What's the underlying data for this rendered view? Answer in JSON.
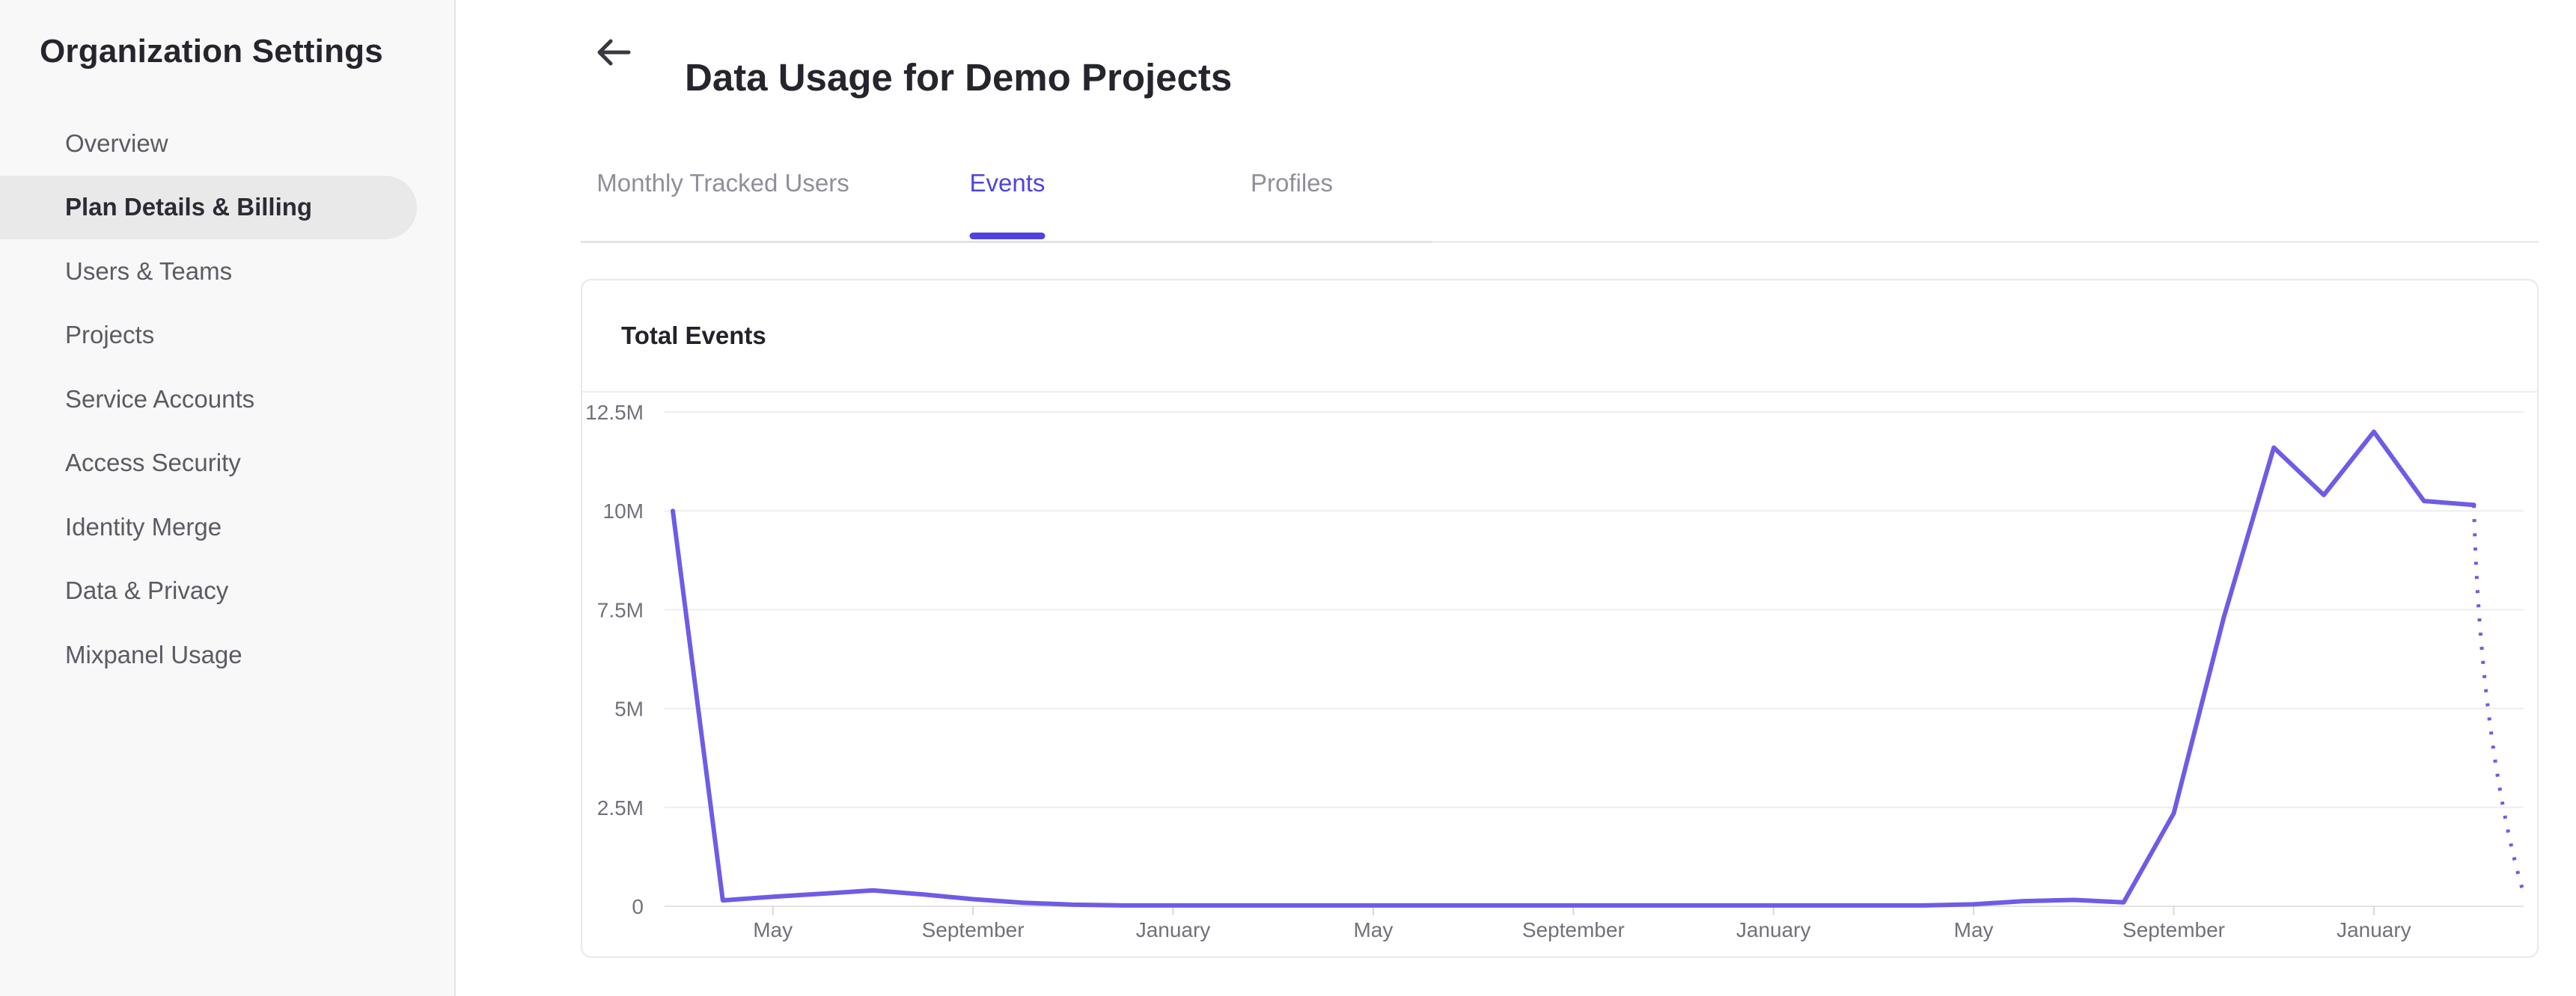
{
  "sidebar": {
    "title": "Organization Settings",
    "items": [
      {
        "label": "Overview",
        "selected": false
      },
      {
        "label": "Plan Details & Billing",
        "selected": true
      },
      {
        "label": "Users & Teams",
        "selected": false
      },
      {
        "label": "Projects",
        "selected": false
      },
      {
        "label": "Service Accounts",
        "selected": false
      },
      {
        "label": "Access Security",
        "selected": false
      },
      {
        "label": "Identity Merge",
        "selected": false
      },
      {
        "label": "Data & Privacy",
        "selected": false
      },
      {
        "label": "Mixpanel Usage",
        "selected": false
      }
    ]
  },
  "header": {
    "title": "Data Usage for Demo Projects",
    "back_icon": "left-arrow"
  },
  "tabs": [
    {
      "label": "Monthly Tracked Users",
      "active": false
    },
    {
      "label": "Events",
      "active": true
    },
    {
      "label": "Profiles",
      "active": false
    }
  ],
  "card": {
    "title": "Total Events"
  },
  "colors": {
    "accent": "#4f43e0",
    "chart_line": "#6e5ce6",
    "sidebar_bg": "#f8f8f8",
    "selected_item_bg": "#e9e9e9",
    "gridline": "#eeeeef",
    "axis_line": "#e3e3e6",
    "axis_text": "#71717c"
  },
  "chart_data": {
    "type": "line",
    "title": "Total Events",
    "x_tick_labels": [
      "May",
      "September",
      "January",
      "May",
      "September",
      "January",
      "May",
      "September",
      "January"
    ],
    "x_tick_month_indices": [
      2,
      6,
      10,
      14,
      18,
      22,
      26,
      30,
      34
    ],
    "y_tick_labels": [
      "12.5M",
      "10M",
      "7.5M",
      "5M",
      "2.5M",
      "0"
    ],
    "y_tick_values_millions": [
      12.5,
      10,
      7.5,
      5,
      2.5,
      0
    ],
    "ylim_millions": [
      0,
      12.5
    ],
    "grid": "horizontal",
    "legend": "none",
    "series": [
      {
        "name": "Total Events",
        "color": "#6e5ce6",
        "unit": "events (millions)",
        "cadence": "monthly",
        "monthly_values_millions": [
          10.0,
          0.15,
          0.24,
          0.32,
          0.4,
          0.3,
          0.18,
          0.09,
          0.04,
          0.02,
          0.02,
          0.02,
          0.02,
          0.02,
          0.02,
          0.02,
          0.02,
          0.02,
          0.02,
          0.02,
          0.02,
          0.02,
          0.02,
          0.02,
          0.02,
          0.02,
          0.05,
          0.13,
          0.16,
          0.1,
          2.35,
          7.3,
          11.6,
          10.4,
          12.0,
          10.25,
          10.15
        ],
        "projected_next_value_millions": 0.3,
        "projection_style": "dotted"
      }
    ]
  }
}
